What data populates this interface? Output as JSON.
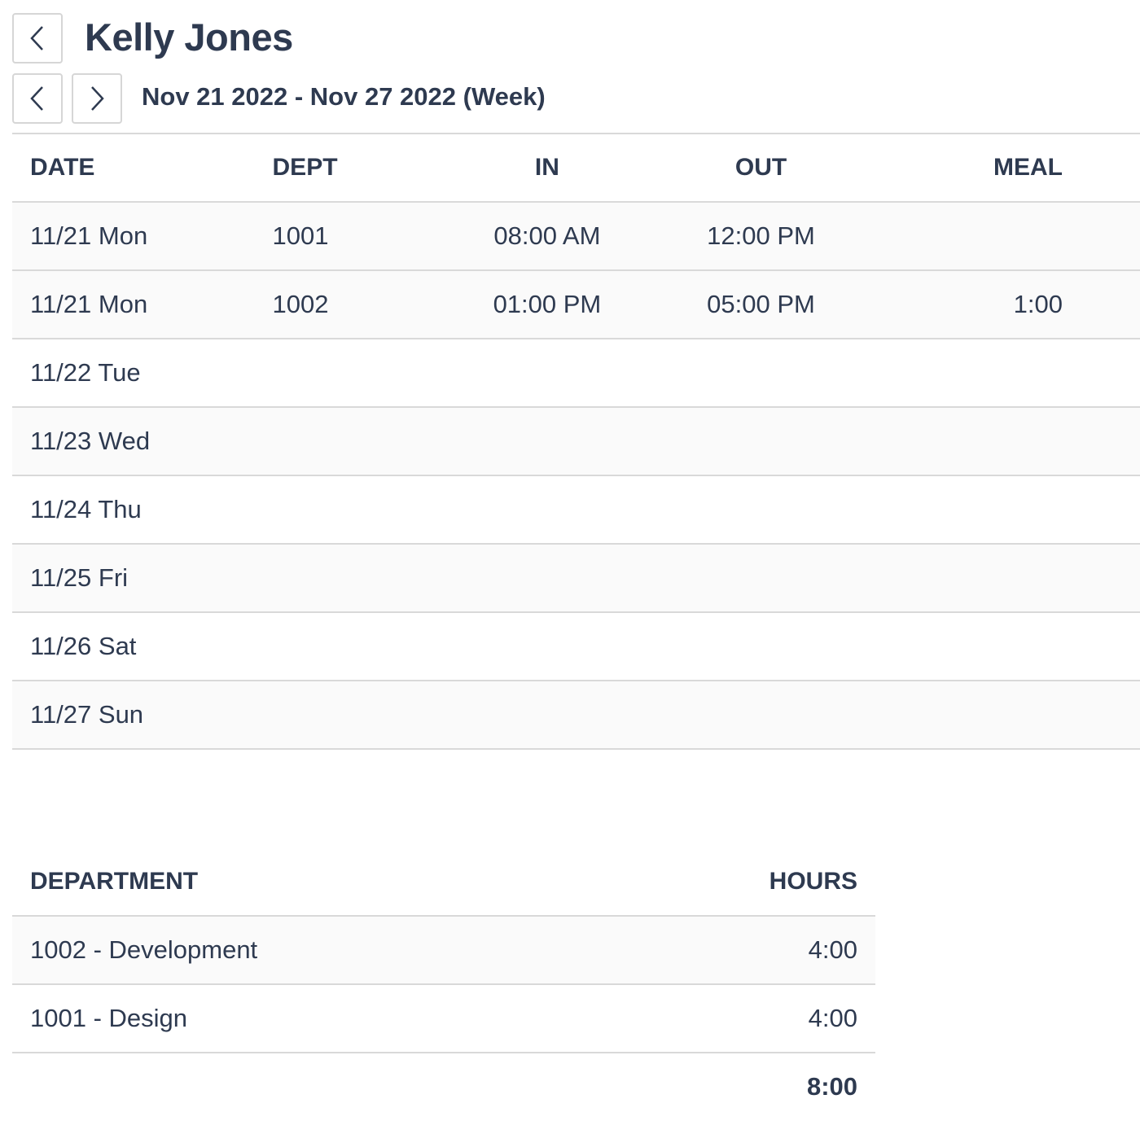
{
  "header": {
    "back_icon": "chevron-left-icon",
    "title": "Kelly Jones",
    "prev_icon": "chevron-left-icon",
    "next_icon": "chevron-right-icon",
    "date_range": "Nov 21 2022 - Nov 27 2022 (Week)"
  },
  "timecard": {
    "columns": [
      "DATE",
      "DEPT",
      "IN",
      "OUT",
      "MEAL"
    ],
    "rows": [
      {
        "date": "11/21 Mon",
        "dept": "1001",
        "in": "08:00 AM",
        "out": "12:00 PM",
        "meal": ""
      },
      {
        "date": "11/21 Mon",
        "dept": "1002",
        "in": "01:00 PM",
        "out": "05:00 PM",
        "meal": "1:00"
      },
      {
        "date": "11/22 Tue",
        "dept": "",
        "in": "",
        "out": "",
        "meal": ""
      },
      {
        "date": "11/23 Wed",
        "dept": "",
        "in": "",
        "out": "",
        "meal": ""
      },
      {
        "date": "11/24 Thu",
        "dept": "",
        "in": "",
        "out": "",
        "meal": ""
      },
      {
        "date": "11/25 Fri",
        "dept": "",
        "in": "",
        "out": "",
        "meal": ""
      },
      {
        "date": "11/26 Sat",
        "dept": "",
        "in": "",
        "out": "",
        "meal": ""
      },
      {
        "date": "11/27 Sun",
        "dept": "",
        "in": "",
        "out": "",
        "meal": ""
      }
    ]
  },
  "summary": {
    "columns": [
      "DEPARTMENT",
      "HOURS"
    ],
    "rows": [
      {
        "department": "1002 - Development",
        "hours": "4:00"
      },
      {
        "department": "1001 - Design",
        "hours": "4:00"
      }
    ],
    "total": "8:00"
  }
}
